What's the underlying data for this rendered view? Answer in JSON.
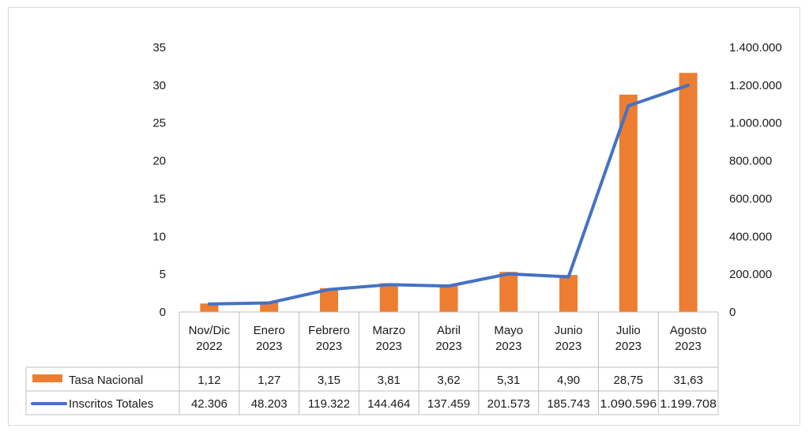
{
  "chart_data": {
    "type": "bar",
    "categories": [
      [
        "Nov/Dic",
        "2022"
      ],
      [
        "Enero",
        "2023"
      ],
      [
        "Febrero",
        "2023"
      ],
      [
        "Marzo",
        "2023"
      ],
      [
        "Abril",
        "2023"
      ],
      [
        "Mayo",
        "2023"
      ],
      [
        "Junio",
        "2023"
      ],
      [
        "Julio",
        "2023"
      ],
      [
        "Agosto",
        "2023"
      ]
    ],
    "series": [
      {
        "name": "Tasa Nacional",
        "type": "bar",
        "axis": "left",
        "color": "#ED7D31",
        "values": [
          1.12,
          1.27,
          3.15,
          3.81,
          3.62,
          5.31,
          4.9,
          28.75,
          31.63
        ],
        "labels": [
          "1,12",
          "1,27",
          "3,15",
          "3,81",
          "3,62",
          "5,31",
          "4,90",
          "28,75",
          "31,63"
        ]
      },
      {
        "name": "Inscritos Totales",
        "type": "line",
        "axis": "right",
        "color": "#4472C4",
        "values": [
          42306,
          48203,
          119322,
          144464,
          137459,
          201573,
          185743,
          1090596,
          1199708
        ],
        "labels": [
          "42.306",
          "48.203",
          "119.322",
          "144.464",
          "137.459",
          "201.573",
          "185.743",
          "1.090.596",
          "1.199.708"
        ]
      }
    ],
    "y_left": {
      "ylim": [
        0,
        35
      ],
      "ticks": [
        0,
        5,
        10,
        15,
        20,
        25,
        30,
        35
      ],
      "tick_labels": [
        "0",
        "5",
        "10",
        "15",
        "20",
        "25",
        "30",
        "35"
      ]
    },
    "y_right": {
      "ylim": [
        0,
        1400000
      ],
      "ticks": [
        0,
        200000,
        400000,
        600000,
        800000,
        1000000,
        1200000,
        1400000
      ],
      "tick_labels": [
        "0",
        "200.000",
        "400.000",
        "600.000",
        "800.000",
        "1.000.000",
        "1.200.000",
        "1.400.000"
      ]
    },
    "grid": false,
    "legend": "data-table",
    "data_table": true
  }
}
